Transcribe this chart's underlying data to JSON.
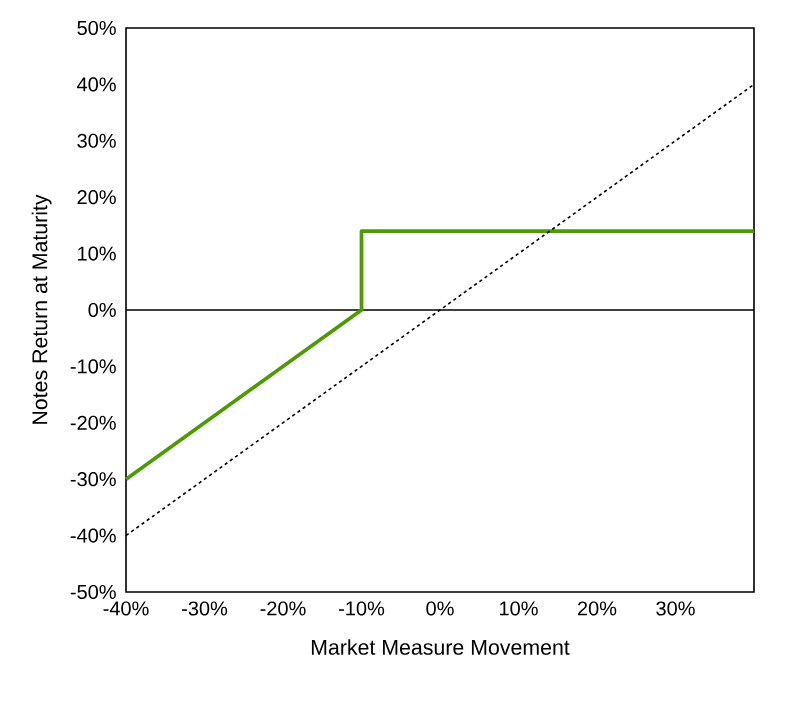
{
  "chart_data": {
    "type": "line",
    "xlabel": "Market Measure Movement",
    "ylabel": "Notes Return at Maturity",
    "xlim": [
      -40,
      40
    ],
    "ylim": [
      -50,
      50
    ],
    "xticks": [
      {
        "value": -40,
        "label": "-40%"
      },
      {
        "value": -30,
        "label": "-30%"
      },
      {
        "value": -20,
        "label": "-20%"
      },
      {
        "value": -10,
        "label": "-10%"
      },
      {
        "value": 0,
        "label": "0%"
      },
      {
        "value": 10,
        "label": "10%"
      },
      {
        "value": 20,
        "label": "20%"
      },
      {
        "value": 30,
        "label": "30%"
      }
    ],
    "yticks": [
      {
        "value": -50,
        "label": "-50%"
      },
      {
        "value": -40,
        "label": "-40%"
      },
      {
        "value": -30,
        "label": "-30%"
      },
      {
        "value": -20,
        "label": "-20%"
      },
      {
        "value": -10,
        "label": "-10%"
      },
      {
        "value": 0,
        "label": "0%"
      },
      {
        "value": 10,
        "label": "10%"
      },
      {
        "value": 20,
        "label": "20%"
      },
      {
        "value": 30,
        "label": "30%"
      },
      {
        "value": 40,
        "label": "40%"
      },
      {
        "value": 50,
        "label": "50%"
      }
    ],
    "series": [
      {
        "color": "#4e9a06",
        "line_style": "solid",
        "x": [
          -40,
          -10,
          -10,
          40
        ],
        "values": [
          -30,
          0,
          14,
          14
        ]
      },
      {
        "color": "#000000",
        "line_style": "dotted",
        "x": [
          -40,
          40
        ],
        "values": [
          -40,
          40
        ]
      }
    ],
    "ref_lines": [
      {
        "axis": "y",
        "value": 0,
        "color": "#000000",
        "line_style": "solid"
      }
    ],
    "marker": "none"
  }
}
